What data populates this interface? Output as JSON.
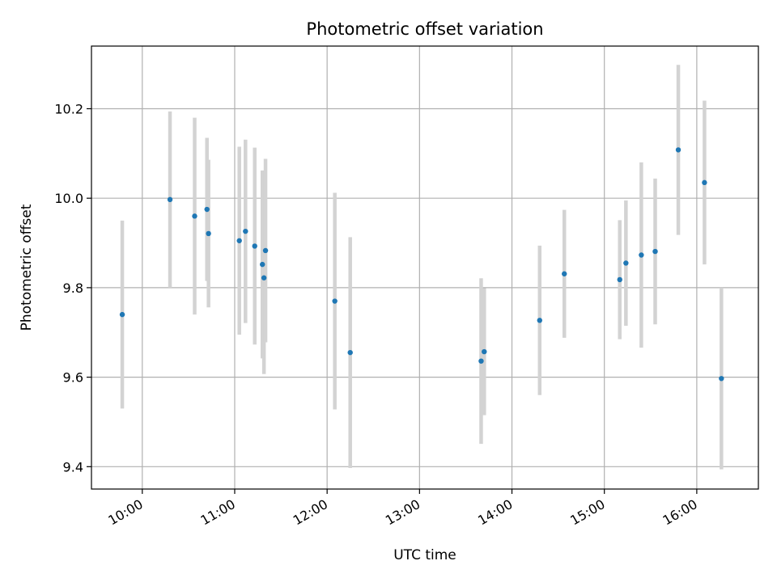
{
  "chart_data": {
    "type": "scatter",
    "title": "Photometric offset variation",
    "xlabel": "UTC time",
    "ylabel": "Photometric offset",
    "x_is_time": true,
    "xlim": [
      "09:27",
      "16:40"
    ],
    "ylim": [
      9.35,
      10.34
    ],
    "x_ticks": [
      "10:00",
      "11:00",
      "12:00",
      "13:00",
      "14:00",
      "15:00",
      "16:00"
    ],
    "y_ticks": [
      9.4,
      9.6,
      9.8,
      10.0,
      10.2
    ],
    "y_tick_labels": [
      "9.4",
      "9.6",
      "9.8",
      "10.0",
      "10.2"
    ],
    "grid": true,
    "colors": {
      "points": "#1f77b4",
      "error_bars": "#d3d3d3",
      "grid": "#b0b0b0",
      "axes": "#000000"
    },
    "points": [
      {
        "x": "09:47",
        "y": 9.74,
        "err": 0.21
      },
      {
        "x": "10:18",
        "y": 9.997,
        "err": 0.197
      },
      {
        "x": "10:34",
        "y": 9.96,
        "err": 0.22
      },
      {
        "x": "10:42",
        "y": 9.975,
        "err": 0.16
      },
      {
        "x": "10:43",
        "y": 9.921,
        "err": 0.165
      },
      {
        "x": "11:03",
        "y": 9.905,
        "err": 0.21
      },
      {
        "x": "11:07",
        "y": 9.926,
        "err": 0.205
      },
      {
        "x": "11:13",
        "y": 9.893,
        "err": 0.22
      },
      {
        "x": "11:18",
        "y": 9.852,
        "err": 0.21
      },
      {
        "x": "11:19",
        "y": 9.822,
        "err": 0.215
      },
      {
        "x": "11:20",
        "y": 9.883,
        "err": 0.205
      },
      {
        "x": "12:05",
        "y": 9.77,
        "err": 0.242
      },
      {
        "x": "12:15",
        "y": 9.655,
        "err": 0.258
      },
      {
        "x": "13:40",
        "y": 9.636,
        "err": 0.185
      },
      {
        "x": "13:42",
        "y": 9.657,
        "err": 0.142
      },
      {
        "x": "14:18",
        "y": 9.727,
        "err": 0.167
      },
      {
        "x": "14:34",
        "y": 9.831,
        "err": 0.143
      },
      {
        "x": "15:10",
        "y": 9.818,
        "err": 0.133
      },
      {
        "x": "15:14",
        "y": 9.855,
        "err": 0.14
      },
      {
        "x": "15:24",
        "y": 9.873,
        "err": 0.207
      },
      {
        "x": "15:33",
        "y": 9.881,
        "err": 0.163
      },
      {
        "x": "15:48",
        "y": 10.108,
        "err": 0.19
      },
      {
        "x": "16:05",
        "y": 10.035,
        "err": 0.183
      },
      {
        "x": "16:16",
        "y": 9.597,
        "err": 0.203
      }
    ]
  }
}
